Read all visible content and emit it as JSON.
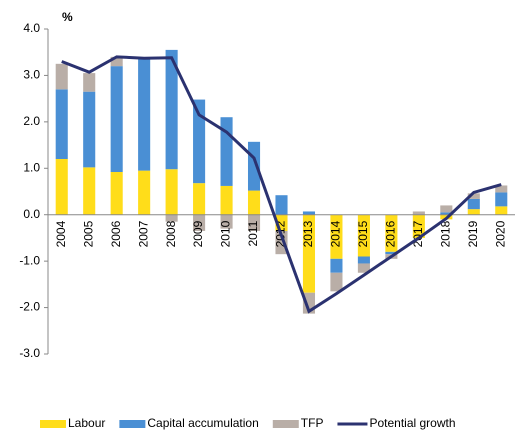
{
  "chart_data": {
    "type": "bar",
    "stacked": true,
    "y_unit_label": "%",
    "categories": [
      "2004",
      "2005",
      "2006",
      "2007",
      "2008",
      "2009",
      "2010",
      "2011",
      "2012",
      "2013",
      "2014",
      "2015",
      "2016",
      "2017",
      "2018",
      "2019",
      "2020"
    ],
    "series": [
      {
        "name": "Labour",
        "color": "#ffdd1a",
        "values": [
          1.2,
          1.02,
          0.92,
          0.95,
          0.98,
          0.68,
          0.62,
          0.52,
          -0.35,
          -1.68,
          -0.95,
          -0.9,
          -0.8,
          -0.5,
          -0.1,
          0.12,
          0.18
        ]
      },
      {
        "name": "Capital accumulation",
        "color": "#4a8fd4",
        "values": [
          1.5,
          1.63,
          2.28,
          2.4,
          2.57,
          1.8,
          1.48,
          1.05,
          0.42,
          0.07,
          -0.3,
          -0.15,
          -0.05,
          0,
          0.05,
          0.22,
          0.3
        ]
      },
      {
        "name": "TFP",
        "color": "#b9aea7",
        "values": [
          0.55,
          0.4,
          0.2,
          0.02,
          -0.15,
          -0.35,
          -0.3,
          -0.35,
          -0.5,
          -0.45,
          -0.4,
          -0.2,
          -0.1,
          0.07,
          0.15,
          0.12,
          0.15
        ]
      },
      {
        "name": "Potential growth",
        "type": "line",
        "color": "#2b3270",
        "values": [
          3.3,
          3.07,
          3.4,
          3.37,
          3.38,
          2.15,
          1.78,
          1.22,
          -0.45,
          -2.08,
          -1.7,
          -1.3,
          -0.9,
          -0.5,
          -0.08,
          0.48,
          0.65
        ]
      }
    ],
    "ylim": [
      -3,
      4
    ],
    "yticks": [
      {
        "value": 4,
        "label": "4.0"
      },
      {
        "value": 3,
        "label": "3.0"
      },
      {
        "value": 2,
        "label": "2.0"
      },
      {
        "value": 1,
        "label": "1.0"
      },
      {
        "value": 0,
        "label": "0.0"
      },
      {
        "value": -1,
        "label": "-1.0"
      },
      {
        "value": -2,
        "label": "-2.0"
      },
      {
        "value": -3,
        "label": "-3.0"
      }
    ],
    "legend": "bottom"
  }
}
